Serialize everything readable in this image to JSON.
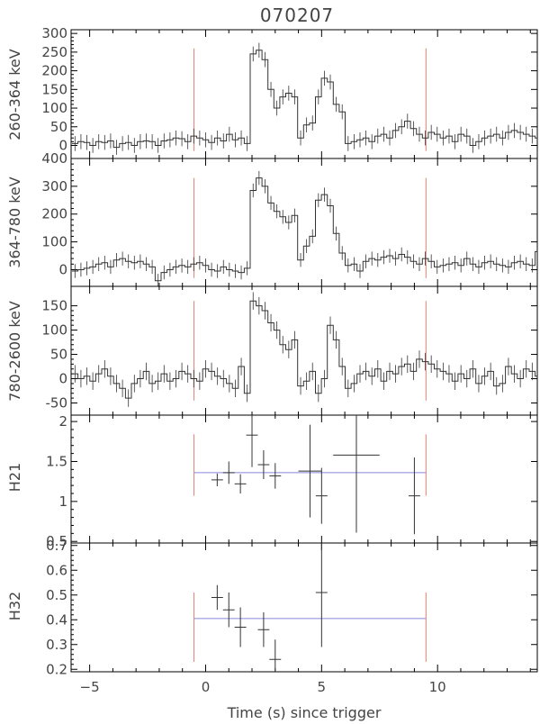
{
  "chart_data": {
    "type": "line",
    "title": "070207",
    "xlabel": "Time (s) since trigger",
    "xlim": [
      -5.8,
      14.3
    ],
    "xticks": [
      -5,
      0,
      5,
      10
    ],
    "colors": {
      "data": "#333333",
      "marker": "#e08070",
      "fit": "#8888dd"
    },
    "vlines_x": [
      -0.5,
      9.5
    ],
    "panels": [
      {
        "ylabel": "260-364 keV",
        "ylim": [
          -35,
          310
        ],
        "yticks": [
          0,
          50,
          100,
          150,
          200,
          250,
          300
        ],
        "marker_range": [
          -15,
          260
        ],
        "bin_width": 0.256,
        "bins_start": -5.76,
        "errors": 20,
        "values": [
          5,
          10,
          8,
          0,
          10,
          8,
          12,
          -5,
          5,
          8,
          0,
          10,
          12,
          10,
          0,
          12,
          15,
          20,
          18,
          10,
          25,
          20,
          15,
          8,
          20,
          12,
          30,
          15,
          20,
          5,
          245,
          255,
          230,
          150,
          100,
          130,
          140,
          130,
          20,
          55,
          60,
          130,
          180,
          170,
          110,
          90,
          5,
          10,
          15,
          20,
          10,
          25,
          30,
          20,
          40,
          50,
          65,
          45,
          30,
          20,
          35,
          30,
          20,
          25,
          10,
          30,
          25,
          0,
          10,
          20,
          25,
          30,
          20,
          35,
          40,
          35,
          30,
          25,
          20,
          15,
          10,
          20,
          15,
          8,
          30,
          20,
          10,
          25,
          20,
          15,
          30,
          35,
          20,
          25,
          30,
          20,
          5,
          10,
          8,
          15,
          25,
          20,
          0,
          10,
          -5,
          10,
          20,
          5
        ],
        "label_pos": [
          22,
          105
        ],
        "box": [
          79,
          33,
          597,
          176
        ]
      },
      {
        "ylabel": "364-780 keV",
        "ylim": [
          -60,
          400
        ],
        "yticks": [
          0,
          100,
          200,
          300,
          400
        ],
        "marker_range": [
          -30,
          330
        ],
        "bin_width": 0.256,
        "bins_start": -5.76,
        "errors": 25,
        "values": [
          -5,
          0,
          5,
          10,
          20,
          25,
          10,
          35,
          40,
          30,
          25,
          30,
          20,
          10,
          -40,
          -10,
          0,
          10,
          15,
          10,
          20,
          25,
          15,
          0,
          -5,
          10,
          0,
          -5,
          -10,
          5,
          285,
          330,
          300,
          240,
          210,
          190,
          170,
          195,
          35,
          85,
          120,
          250,
          270,
          230,
          130,
          60,
          15,
          20,
          -5,
          30,
          40,
          35,
          45,
          50,
          40,
          55,
          45,
          30,
          20,
          40,
          30,
          10,
          15,
          20,
          25,
          15,
          40,
          20,
          10,
          25,
          30,
          20,
          15,
          10,
          25,
          30,
          20,
          15,
          65,
          40,
          15,
          25,
          20,
          20,
          15,
          10,
          -10,
          -30,
          10,
          5,
          20,
          15,
          10,
          25,
          30,
          15,
          5,
          -10,
          -5,
          10,
          -5,
          -10,
          -5,
          15,
          10
        ],
        "label_pos": [
          22,
          247
        ],
        "box": [
          79,
          176,
          597,
          318
        ]
      },
      {
        "ylabel": "780-2600 keV",
        "ylim": [
          -75,
          190
        ],
        "yticks": [
          -50,
          0,
          50,
          100,
          150
        ],
        "marker_range": [
          -45,
          160
        ],
        "bin_width": 0.256,
        "bins_start": -5.76,
        "errors": 18,
        "values": [
          10,
          0,
          5,
          -5,
          10,
          20,
          5,
          -10,
          -20,
          -40,
          -10,
          0,
          15,
          -10,
          -5,
          10,
          -5,
          0,
          15,
          10,
          0,
          -5,
          20,
          15,
          5,
          0,
          -10,
          -20,
          25,
          -30,
          160,
          150,
          140,
          115,
          100,
          70,
          60,
          80,
          -15,
          -5,
          15,
          -30,
          0,
          110,
          80,
          25,
          -20,
          -10,
          10,
          15,
          5,
          20,
          -5,
          15,
          10,
          25,
          30,
          15,
          40,
          35,
          30,
          20,
          15,
          10,
          -5,
          10,
          0,
          20,
          -10,
          5,
          15,
          -15,
          -10,
          25,
          10,
          0,
          20,
          15,
          5,
          -10,
          25,
          0,
          10,
          40,
          15,
          20,
          -5,
          10,
          15,
          30,
          5,
          0,
          20,
          -10,
          -20,
          -5,
          -30,
          5,
          15,
          25,
          -5,
          0,
          -40,
          20,
          -10,
          30,
          -20
        ],
        "label_pos": [
          22,
          390
        ],
        "box": [
          79,
          318,
          597,
          461
        ]
      },
      {
        "ylabel": "H21",
        "ylim": [
          0.48,
          2.08
        ],
        "yticks": [
          0.5,
          1.0,
          1.5,
          2.0
        ],
        "marker_range": [
          1.07,
          1.84
        ],
        "fit": [
          -0.5,
          9.5,
          1.36
        ],
        "points": [
          {
            "x": 0.5,
            "y": 1.27,
            "xe": 0.25,
            "ye": 0.08
          },
          {
            "x": 1.0,
            "y": 1.36,
            "xe": 0.25,
            "ye": 0.14
          },
          {
            "x": 1.5,
            "y": 1.22,
            "xe": 0.25,
            "ye": 0.12
          },
          {
            "x": 2.0,
            "y": 1.83,
            "xe": 0.25,
            "ye": 0.4
          },
          {
            "x": 2.5,
            "y": 1.46,
            "xe": 0.25,
            "ye": 0.18
          },
          {
            "x": 3.0,
            "y": 1.32,
            "xe": 0.25,
            "ye": 0.16
          },
          {
            "x": 4.5,
            "y": 1.38,
            "xe": 0.5,
            "ye": 0.58
          },
          {
            "x": 5.0,
            "y": 1.07,
            "xe": 0.25,
            "ye": 0.35
          },
          {
            "x": 6.5,
            "y": 1.58,
            "xe": 1.0,
            "ye": 0.97
          },
          {
            "x": 9.0,
            "y": 1.07,
            "xe": 0.25,
            "ye": 0.48
          }
        ],
        "label_pos": [
          22,
          530
        ],
        "box": [
          79,
          461,
          597,
          603
        ]
      },
      {
        "ylabel": "H32",
        "ylim": [
          0.19,
          0.71
        ],
        "yticks": [
          0.2,
          0.3,
          0.4,
          0.5,
          0.6,
          0.7
        ],
        "marker_range": [
          0.23,
          0.51
        ],
        "fit": [
          -0.5,
          9.5,
          0.405
        ],
        "points": [
          {
            "x": 0.5,
            "y": 0.49,
            "xe": 0.25,
            "ye": 0.05
          },
          {
            "x": 1.0,
            "y": 0.44,
            "xe": 0.25,
            "ye": 0.07
          },
          {
            "x": 1.5,
            "y": 0.37,
            "xe": 0.25,
            "ye": 0.08
          },
          {
            "x": 2.5,
            "y": 0.36,
            "xe": 0.25,
            "ye": 0.07
          },
          {
            "x": 3.0,
            "y": 0.24,
            "xe": 0.25,
            "ye": 0.08
          },
          {
            "x": 5.0,
            "y": 0.51,
            "xe": 0.25,
            "ye": 0.22
          }
        ],
        "label_pos": [
          22,
          673
        ],
        "box": [
          79,
          603,
          597,
          746
        ]
      }
    ]
  }
}
